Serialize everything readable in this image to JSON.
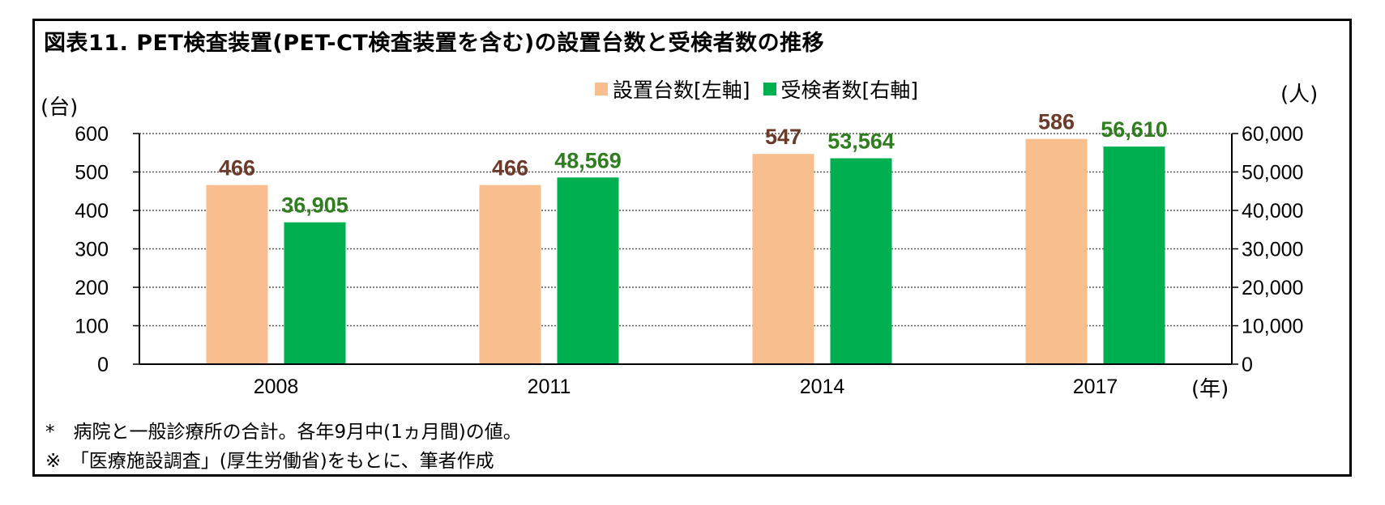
{
  "title": "図表11. PET検査装置(PET-CT検査装置を含む)の設置台数と受検者数の推移",
  "left_unit": "(台)",
  "right_unit": "(人)",
  "x_unit": "(年)",
  "legend": [
    {
      "label": "設置台数[左軸]",
      "color": "#F8BE8E"
    },
    {
      "label": "受検者数[右軸]",
      "color": "#00B050"
    }
  ],
  "notes": [
    "*　病院と一般診療所の合計。各年9月中(1ヵ月間)の値。",
    "※　「医療施設調査」(厚生労働省)をもとに、筆者作成"
  ],
  "chart_data": {
    "type": "bar",
    "categories": [
      "2008",
      "2011",
      "2014",
      "2017"
    ],
    "series": [
      {
        "name": "設置台数[左軸]",
        "axis": "left",
        "values": [
          466,
          466,
          547,
          586
        ],
        "labels": [
          "466",
          "466",
          "547",
          "586"
        ],
        "color": "#F8BE8E",
        "label_color": "#6B3A2A"
      },
      {
        "name": "受検者数[右軸]",
        "axis": "right",
        "values": [
          36905,
          48569,
          53564,
          56610
        ],
        "labels": [
          "36,905",
          "48,569",
          "53,564",
          "56,610"
        ],
        "color": "#00B050",
        "label_color": "#2E7D1E"
      }
    ],
    "left_axis": {
      "min": 0,
      "max": 600,
      "ticks": [
        "0",
        "100",
        "200",
        "300",
        "400",
        "500",
        "600"
      ]
    },
    "right_axis": {
      "min": 0,
      "max": 60000,
      "ticks": [
        "0",
        "10,000",
        "20,000",
        "30,000",
        "40,000",
        "50,000",
        "60,000"
      ]
    },
    "grid": true,
    "legend_position": "top"
  }
}
